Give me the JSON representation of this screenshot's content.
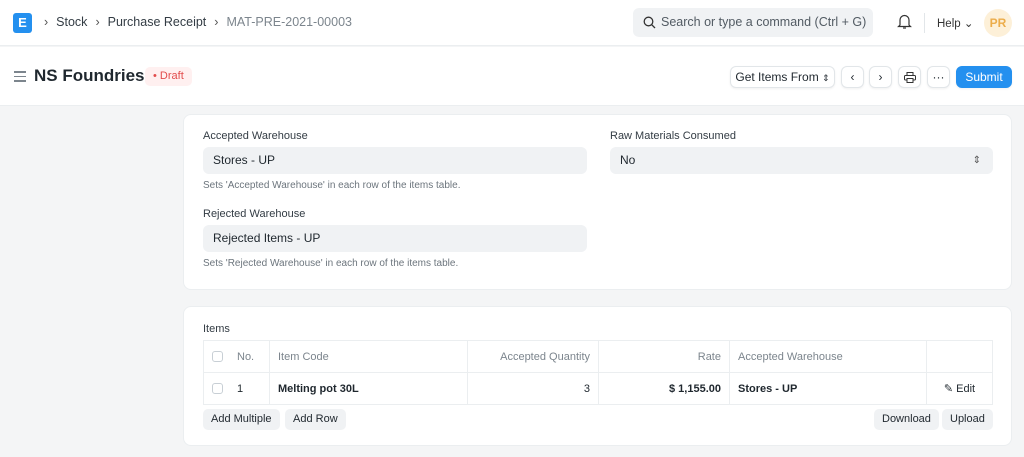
{
  "navbar": {
    "logo": "E",
    "breadcrumbs": [
      "Stock",
      "Purchase Receipt",
      "MAT-PRE-2021-00003"
    ],
    "search_placeholder": "Search or type a command (Ctrl + G)",
    "help": "Help",
    "avatar": "PR"
  },
  "page": {
    "title": "NS Foundries",
    "status": "Draft",
    "status_color": "#e24c4c",
    "accent": "#2490ef",
    "get_items": "Get Items From",
    "submit": "Submit"
  },
  "warehouse": {
    "accepted_label": "Accepted Warehouse",
    "accepted_value": "Stores - UP",
    "accepted_desc": "Sets 'Accepted Warehouse' in each row of the items table.",
    "rejected_label": "Rejected Warehouse",
    "rejected_value": "Rejected Items - UP",
    "rejected_desc": "Sets 'Rejected Warehouse' in each row of the items table.",
    "raw_label": "Raw Materials Consumed",
    "raw_value": "No"
  },
  "items": {
    "label": "Items",
    "columns": [
      "No.",
      "Item Code",
      "Accepted Quantity",
      "Rate",
      "Accepted Warehouse"
    ],
    "rows": [
      {
        "no": "1",
        "item_code": "Melting pot 30L",
        "qty": "3",
        "rate": "$ 1,155.00",
        "warehouse": "Stores - UP",
        "edit": "Edit"
      }
    ],
    "add_multiple": "Add Multiple",
    "add_row": "Add Row",
    "download": "Download",
    "upload": "Upload"
  }
}
